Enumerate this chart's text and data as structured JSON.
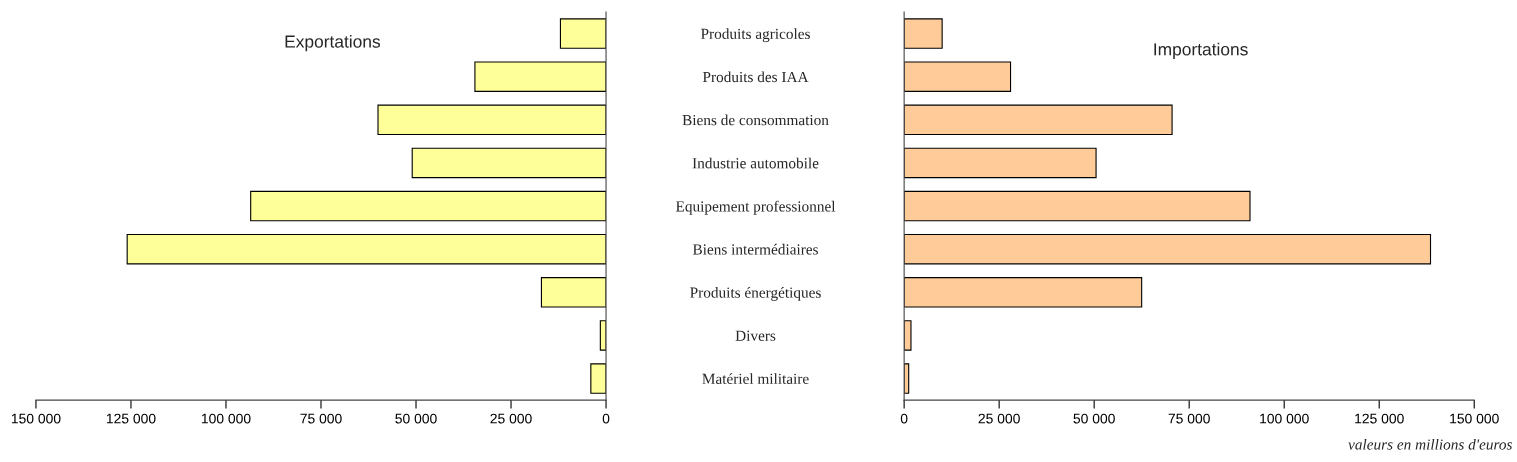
{
  "chart_data": [
    {
      "type": "bar",
      "orientation": "horizontal",
      "title": "Exportations",
      "tick_labels": "x",
      "grid": false,
      "legend": false,
      "series": [
        {
          "color": "#ffff99",
          "values": [
            12000,
            34500,
            60000,
            51000,
            93500,
            126000,
            17000,
            1500,
            4000
          ]
        }
      ],
      "xlim": [
        150000,
        0
      ],
      "xticks": [
        {
          "value": 150000,
          "label": "150 000"
        },
        {
          "value": 125000,
          "label": "125 000"
        },
        {
          "value": 100000,
          "label": "100 000"
        },
        {
          "value": 75000,
          "label": "75 000"
        },
        {
          "value": 50000,
          "label": "50 000"
        },
        {
          "value": 25000,
          "label": "25 000"
        },
        0
      ]
    },
    {
      "type": "bar",
      "orientation": "horizontal",
      "title": "Importations",
      "grid": false,
      "legend": false,
      "categories": [
        "Produits agricoles",
        "Produits des IAA",
        "Biens de consommation",
        "Industrie automobile",
        "Equipement professionnel",
        "Biens intermédiaires",
        "Produits énergétiques",
        "Divers",
        "Matériel militaire"
      ],
      "series": [
        {
          "color": "#ffcc99",
          "values": [
            10000,
            28000,
            70500,
            50500,
            91000,
            138500,
            62500,
            1800,
            1200
          ]
        }
      ],
      "xlim": [
        0,
        150000
      ],
      "xticks": [
        0,
        {
          "value": 25000,
          "label": "25 000"
        },
        {
          "value": 50000,
          "label": "50 000"
        },
        {
          "value": 75000,
          "label": "75 000"
        },
        {
          "value": 100000,
          "label": "100 000"
        },
        {
          "value": 125000,
          "label": "125 000"
        },
        {
          "value": 150000,
          "label": "150 000"
        }
      ],
      "annotations": [
        "valeurs en millions d'euros"
      ]
    }
  ]
}
